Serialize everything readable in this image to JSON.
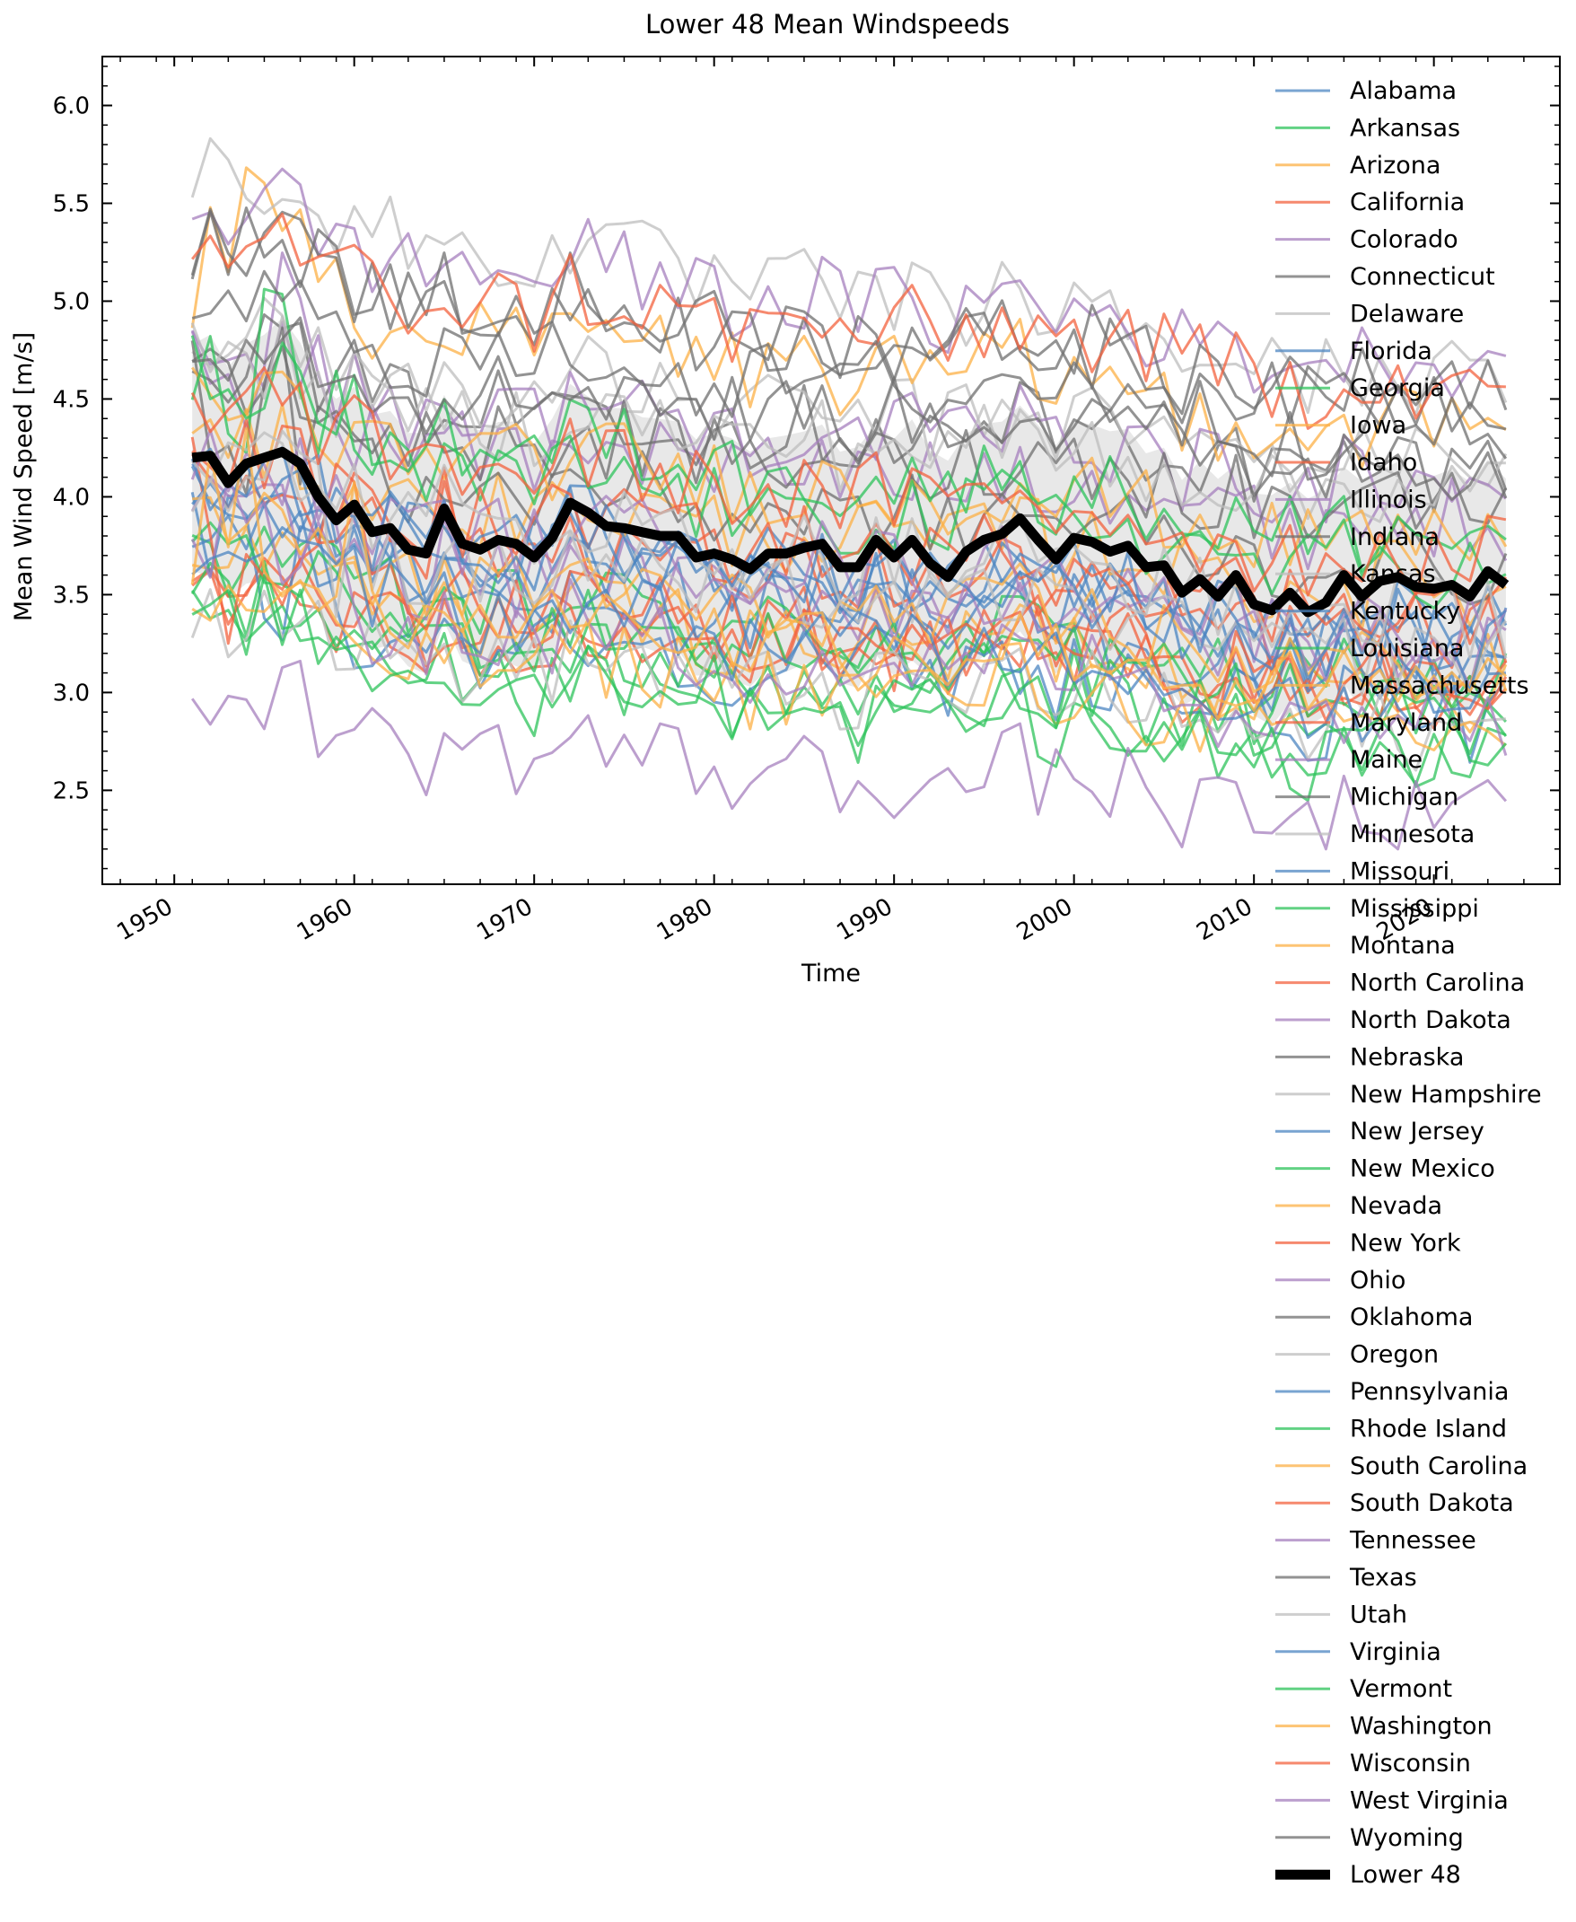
{
  "chart_data": {
    "type": "line",
    "title": "Lower 48 Mean Windspeeds",
    "xlabel": "Time",
    "ylabel": "Mean Wind Speed [m/s]",
    "xlim": [
      1946,
      2027
    ],
    "ylim": [
      2.02,
      6.25
    ],
    "xticks": [
      1950,
      1960,
      1970,
      1980,
      1990,
      2000,
      2010,
      2020
    ],
    "yticks": [
      2.5,
      3.0,
      3.5,
      4.0,
      4.5,
      5.0,
      5.5,
      6.0
    ],
    "x_start": 1951,
    "x_end": 2024,
    "legend_position": "right (upper right, extends below axes)",
    "band": {
      "description": "shaded spread (±1 std) around Lower 48 mean",
      "color": "#cccccc"
    },
    "aggregate": {
      "name": "Lower 48",
      "color": "#000000",
      "values": [
        4.2,
        4.21,
        4.07,
        4.17,
        4.2,
        4.23,
        4.17,
        4.0,
        3.88,
        3.96,
        3.82,
        3.84,
        3.73,
        3.71,
        3.94,
        3.76,
        3.73,
        3.78,
        3.76,
        3.69,
        3.79,
        3.97,
        3.92,
        3.85,
        3.84,
        3.82,
        3.8,
        3.8,
        3.69,
        3.71,
        3.68,
        3.63,
        3.71,
        3.71,
        3.74,
        3.76,
        3.64,
        3.64,
        3.78,
        3.69,
        3.78,
        3.66,
        3.59,
        3.72,
        3.78,
        3.81,
        3.89,
        3.78,
        3.68,
        3.79,
        3.77,
        3.72,
        3.75,
        3.64,
        3.65,
        3.51,
        3.58,
        3.49,
        3.6,
        3.45,
        3.42,
        3.51,
        3.41,
        3.46,
        3.6,
        3.49,
        3.57,
        3.59,
        3.54,
        3.53,
        3.55,
        3.49,
        3.62,
        3.55
      ]
    },
    "series": [
      {
        "name": "Alabama",
        "color": "#4c86c1",
        "base": 3.7,
        "trend": -0.35
      },
      {
        "name": "Arkansas",
        "color": "#2ec35b",
        "base": 3.5,
        "trend": -0.35
      },
      {
        "name": "Arizona",
        "color": "#fcb045",
        "base": 3.45,
        "trend": -0.3
      },
      {
        "name": "California",
        "color": "#f3613e",
        "base": 3.35,
        "trend": -0.2
      },
      {
        "name": "Colorado",
        "color": "#a67fbd",
        "base": 4.3,
        "trend": -0.3
      },
      {
        "name": "Connecticut",
        "color": "#6f6f6f",
        "base": 4.5,
        "trend": -0.25
      },
      {
        "name": "Delaware",
        "color": "#bdbdbd",
        "base": 4.6,
        "trend": -0.3
      },
      {
        "name": "Florida",
        "color": "#4c86c1",
        "base": 3.6,
        "trend": -0.4
      },
      {
        "name": "Georgia",
        "color": "#2ec35b",
        "base": 3.05,
        "trend": -0.3
      },
      {
        "name": "Iowa",
        "color": "#fcb045",
        "base": 4.9,
        "trend": -0.45
      },
      {
        "name": "Idaho",
        "color": "#f3613e",
        "base": 3.3,
        "trend": -0.15
      },
      {
        "name": "Illinois",
        "color": "#a67fbd",
        "base": 4.5,
        "trend": -0.3
      },
      {
        "name": "Indiana",
        "color": "#6f6f6f",
        "base": 4.3,
        "trend": -0.2
      },
      {
        "name": "Kansas",
        "color": "#bdbdbd",
        "base": 5.4,
        "trend": -0.7
      },
      {
        "name": "Kentucky",
        "color": "#4c86c1",
        "base": 3.3,
        "trend": -0.3
      },
      {
        "name": "Louisiana",
        "color": "#2ec35b",
        "base": 3.4,
        "trend": -0.35
      },
      {
        "name": "Massachusetts",
        "color": "#fcb045",
        "base": 4.0,
        "trend": -0.35
      },
      {
        "name": "Maryland",
        "color": "#f3613e",
        "base": 3.85,
        "trend": -0.45
      },
      {
        "name": "Maine",
        "color": "#a67fbd",
        "base": 3.65,
        "trend": -0.3
      },
      {
        "name": "Michigan",
        "color": "#6f6f6f",
        "base": 4.1,
        "trend": -0.35
      },
      {
        "name": "Minnesota",
        "color": "#bdbdbd",
        "base": 4.45,
        "trend": -0.3
      },
      {
        "name": "Missouri",
        "color": "#4c86c1",
        "base": 3.85,
        "trend": -0.45
      },
      {
        "name": "Mississippi",
        "color": "#2ec35b",
        "base": 3.25,
        "trend": -0.35
      },
      {
        "name": "Montana",
        "color": "#fcb045",
        "base": 4.25,
        "trend": -0.35
      },
      {
        "name": "North Carolina",
        "color": "#f3613e",
        "base": 3.5,
        "trend": -0.35
      },
      {
        "name": "North Dakota",
        "color": "#a67fbd",
        "base": 5.25,
        "trend": -0.45
      },
      {
        "name": "Nebraska",
        "color": "#6f6f6f",
        "base": 5.05,
        "trend": -0.45
      },
      {
        "name": "New Hampshire",
        "color": "#bdbdbd",
        "base": 3.2,
        "trend": -0.3
      },
      {
        "name": "New Jersey",
        "color": "#4c86c1",
        "base": 3.9,
        "trend": -0.45
      },
      {
        "name": "New Mexico",
        "color": "#2ec35b",
        "base": 4.15,
        "trend": -0.4
      },
      {
        "name": "Nevada",
        "color": "#fcb045",
        "base": 3.6,
        "trend": -0.35
      },
      {
        "name": "New York",
        "color": "#f3613e",
        "base": 3.95,
        "trend": -0.4
      },
      {
        "name": "Ohio",
        "color": "#a67fbd",
        "base": 3.9,
        "trend": -0.45
      },
      {
        "name": "Oklahoma",
        "color": "#6f6f6f",
        "base": 5.0,
        "trend": -0.3
      },
      {
        "name": "Oregon",
        "color": "#bdbdbd",
        "base": 3.7,
        "trend": -0.4
      },
      {
        "name": "Pennsylvania",
        "color": "#4c86c1",
        "base": 3.85,
        "trend": -0.5
      },
      {
        "name": "Rhode Island",
        "color": "#2ec35b",
        "base": 4.35,
        "trend": -0.45
      },
      {
        "name": "South Carolina",
        "color": "#fcb045",
        "base": 3.2,
        "trend": -0.3
      },
      {
        "name": "South Dakota",
        "color": "#f3613e",
        "base": 5.05,
        "trend": -0.35
      },
      {
        "name": "Tennessee",
        "color": "#a67fbd",
        "base": 3.35,
        "trend": -0.35
      },
      {
        "name": "Texas",
        "color": "#6f6f6f",
        "base": 4.6,
        "trend": -0.3
      },
      {
        "name": "Utah",
        "color": "#bdbdbd",
        "base": 3.95,
        "trend": -0.45
      },
      {
        "name": "Virginia",
        "color": "#4c86c1",
        "base": 3.5,
        "trend": -0.45
      },
      {
        "name": "Vermont",
        "color": "#2ec35b",
        "base": 3.15,
        "trend": -0.35
      },
      {
        "name": "Washington",
        "color": "#fcb045",
        "base": 3.45,
        "trend": -0.35
      },
      {
        "name": "Wisconsin",
        "color": "#f3613e",
        "base": 4.25,
        "trend": -0.45
      },
      {
        "name": "West Virginia",
        "color": "#a67fbd",
        "base": 2.75,
        "trend": -0.3
      },
      {
        "name": "Wyoming",
        "color": "#6f6f6f",
        "base": 4.75,
        "trend": -0.3
      }
    ]
  }
}
